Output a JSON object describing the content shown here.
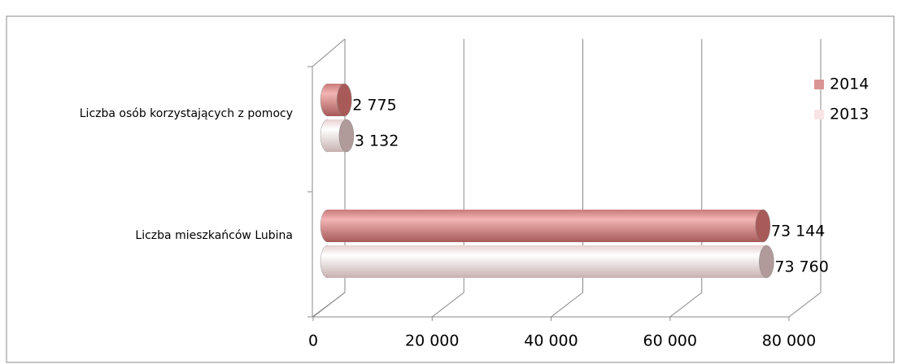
{
  "chart_data": {
    "type": "bar",
    "orientation": "horizontal",
    "categories": [
      "Liczba osób korzystających z pomocy",
      "Liczba mieszkańców Lubina"
    ],
    "series": [
      {
        "name": "2014",
        "color": "#d99594",
        "values": [
          2775,
          73144
        ],
        "value_labels": [
          "2 775",
          "73 144"
        ]
      },
      {
        "name": "2013",
        "color": "#f8e4e4",
        "values": [
          3132,
          73760
        ],
        "value_labels": [
          "3 132",
          "73 760"
        ]
      }
    ],
    "xlim": [
      0,
      80000
    ],
    "xticks": [
      0,
      {
        "value": 20000,
        "label": "20 000"
      },
      {
        "value": 40000,
        "label": "40 000"
      },
      {
        "value": 60000,
        "label": "60 000"
      },
      {
        "value": 80000,
        "label": "80 000"
      }
    ],
    "grid": true,
    "legend": "right"
  }
}
